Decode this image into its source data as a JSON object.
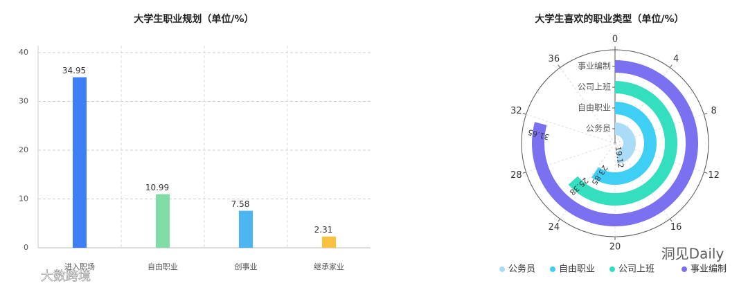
{
  "chart_data": [
    {
      "type": "bar",
      "title": "大学生职业规划（单位/%）",
      "categories": [
        "进入职场",
        "自由职业",
        "创事业",
        "继承家业"
      ],
      "values": [
        34.95,
        10.99,
        7.58,
        2.31
      ],
      "colors": [
        "#3f7ff6",
        "#82dca6",
        "#4db6f2",
        "#fac13e"
      ],
      "ylim": [
        0,
        40
      ],
      "yticks": [
        0,
        10,
        20,
        30,
        40
      ],
      "grid": true
    },
    {
      "type": "polar_bar",
      "title": "大学生喜欢的职业类型（单位/%）",
      "categories": [
        "公务员",
        "自由职业",
        "公司上班",
        "事业编制"
      ],
      "values": [
        19.12,
        23.85,
        25.38,
        31.65
      ],
      "colors": [
        "#aadcf7",
        "#3fcff5",
        "#34dfc0",
        "#7b70f0"
      ],
      "anglelim": [
        0,
        40
      ],
      "angleticks": [
        0,
        4,
        8,
        12,
        16,
        20,
        24,
        28,
        32,
        36
      ]
    }
  ],
  "watermarks": [
    "洞见Daily",
    "大数跨境"
  ]
}
